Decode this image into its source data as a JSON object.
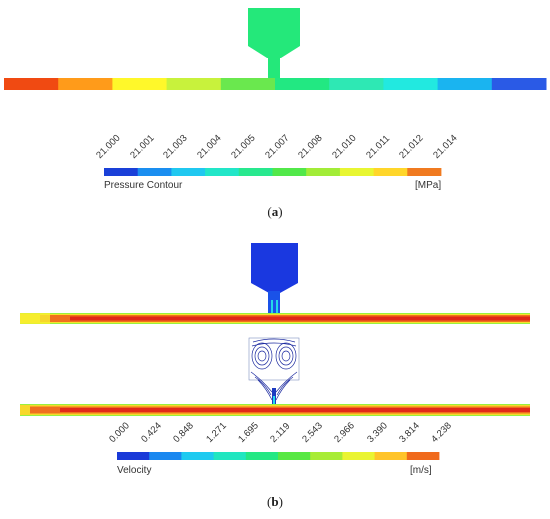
{
  "panel_a": {
    "pipe_colors": [
      "#f04a12",
      "#ff9b1a",
      "#fff82a",
      "#c8f23c",
      "#6ae84e",
      "#22e882",
      "#2ee8b4",
      "#22e9e0",
      "#1ab4f0",
      "#2a5ae6"
    ],
    "body_color": "#24e87a",
    "legend": {
      "ticks": [
        "21.000",
        "21.001",
        "21.003",
        "21.004",
        "21.005",
        "21.007",
        "21.008",
        "21.010",
        "21.011",
        "21.012",
        "21.014"
      ],
      "colors": [
        "#1a40d8",
        "#1a8ef0",
        "#20c8f0",
        "#22e6c8",
        "#28e88e",
        "#52e84a",
        "#a2ec38",
        "#e8f632",
        "#ffd62a",
        "#f07a20"
      ],
      "title": "Pressure Contour",
      "unit": "[MPa]"
    },
    "caption_open": "(",
    "caption_letter": "a",
    "caption_close": ")"
  },
  "panel_b": {
    "legend": {
      "ticks": [
        "0.000",
        "0.424",
        "0.848",
        "1.271",
        "1.695",
        "2.119",
        "2.543",
        "2.966",
        "3.390",
        "3.814",
        "4.238"
      ],
      "colors": [
        "#1a3ad8",
        "#1a88f0",
        "#1ecaf0",
        "#20e6c0",
        "#24e884",
        "#58e844",
        "#a8ec36",
        "#eaf432",
        "#ffc42a",
        "#f06a1c"
      ],
      "title": "Velocity",
      "unit": "[m/s]"
    },
    "caption_open": "(",
    "caption_letter": "b",
    "caption_close": ")"
  }
}
